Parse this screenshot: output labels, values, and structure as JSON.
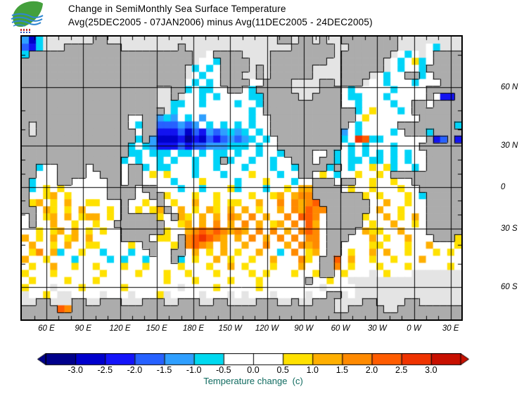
{
  "header": {
    "title_line1": "Change in SemiMonthly Sea Surface Temperature",
    "title_line2": "Avg(25DEC2005 - 07JAN2006) minus Avg(11DEC2005 - 24DEC2005)"
  },
  "colors": {
    "background": "#FFFFFF",
    "frame": "#000000",
    "land": "#ACACAC",
    "no_data": "#E4E4E4",
    "caption_text": "#106B60",
    "logo_leaf_green": "#44A03C",
    "logo_wave_blue": "#2E86D1"
  },
  "chart_data": {
    "type": "heatmap",
    "title": "Change in SemiMonthly Sea Surface Temperature",
    "subtitle": "Avg(25DEC2005 - 07JAN2006) minus Avg(11DEC2005 - 24DEC2005)",
    "projection": "mercator",
    "lon_domain_deg_east": [
      39,
      399
    ],
    "lat_domain": [
      -70,
      74
    ],
    "grid_on": true,
    "lon_gridlines": [
      60,
      90,
      120,
      150,
      180,
      210,
      240,
      270,
      300,
      330,
      360,
      390
    ],
    "lat_gridlines": [
      60,
      30,
      0,
      -30,
      -60
    ],
    "tick_interval_deg": 10,
    "x_ticks": [
      {
        "label": "60 E",
        "lon": 60
      },
      {
        "label": "90 E",
        "lon": 90
      },
      {
        "label": "120 E",
        "lon": 120
      },
      {
        "label": "150 E",
        "lon": 150
      },
      {
        "label": "180 E",
        "lon": 180
      },
      {
        "label": "150 W",
        "lon": 210
      },
      {
        "label": "120 W",
        "lon": 240
      },
      {
        "label": "90 W",
        "lon": 270
      },
      {
        "label": "60 W",
        "lon": 300
      },
      {
        "label": "30 W",
        "lon": 330
      },
      {
        "label": "0 W",
        "lon": 360
      },
      {
        "label": "30 E",
        "lon": 390
      }
    ],
    "y_ticks": [
      {
        "label": "60 N",
        "lat": 60
      },
      {
        "label": "30 N",
        "lat": 30
      },
      {
        "label": "0",
        "lat": 0
      },
      {
        "label": "30 S",
        "lat": -30
      },
      {
        "label": "60 S",
        "lat": -60
      }
    ],
    "colorbar": {
      "caption": "Temperature change  (c)",
      "tick_labels": [
        "-3.0",
        "-2.5",
        "-2.0",
        "-1.5",
        "-1.0",
        "-0.5",
        "0.0",
        "0.5",
        "1.0",
        "1.5",
        "2.0",
        "2.5",
        "3.0"
      ],
      "box_colors": [
        "#00008B",
        "#0000CD",
        "#1414FA",
        "#2761FF",
        "#2F9FFF",
        "#00D9F0",
        "#FFFFFF",
        "#FFFFFF",
        "#FFE100",
        "#FFAF00",
        "#FF8A00",
        "#FF5C00",
        "#EF3300",
        "#C81000"
      ],
      "left_arrow_color": "#00008B",
      "right_arrow_color": "#C81000",
      "units": "c"
    },
    "cell_legend": {
      "L": {
        "color": "#ACACAC",
        "meaning": "land"
      },
      "A": {
        "color": "#E4E4E4",
        "meaning": "no data / ice"
      },
      ".": {
        "color": "#FFFFFF",
        "value_range": [
          -0.5,
          0.5
        ]
      },
      "1": {
        "color": "#00D4F8",
        "value_range": [
          -1.0,
          -0.5
        ]
      },
      "2": {
        "color": "#2F9FFF",
        "value_range": [
          -1.5,
          -1.0
        ]
      },
      "3": {
        "color": "#2761FF",
        "value_range": [
          -2.0,
          -1.5
        ]
      },
      "4": {
        "color": "#1212F0",
        "value_range": [
          -2.5,
          -2.0
        ]
      },
      "5": {
        "color": "#0000C8",
        "value_range": [
          -3.0,
          -2.5
        ]
      },
      "6": {
        "color": "#000090",
        "value_range": [
          -3.5,
          -3.0
        ]
      },
      "a": {
        "color": "#FFE100",
        "value_range": [
          0.5,
          1.0
        ]
      },
      "b": {
        "color": "#FFAF00",
        "value_range": [
          1.0,
          1.5
        ]
      },
      "c": {
        "color": "#FF8A00",
        "value_range": [
          1.5,
          2.0
        ]
      },
      "d": {
        "color": "#FF5C00",
        "value_range": [
          2.0,
          2.5
        ]
      },
      "e": {
        "color": "#EF3300",
        "value_range": [
          2.5,
          3.0
        ]
      },
      "f": {
        "color": "#C81000",
        "value_range": [
          3.0,
          3.5
        ]
      }
    },
    "grid_cols": 62,
    "grid_rows": [
      "251AAAAAAALLAAAAAAAAAAAAAAAAAAAAAAAALLALLALAALLLLLLLLAAAAAAAAA",
      "341AAALLLLLLLLAAAAAAAALAAAAAAAAAAAAAAALLLLLLAALLLLLLLAAAA.1AAAA",
      "1LLLLLLLLLLLLLLLLLLLLLLLAA.LLLLAAAALLLLLLLLLALLLLLLLA.1.A.LLLL",
      "LLLLLLLLLLLLLLLLLLLLLLLLA..1LLLLAAALLLLLLLLAALLLLLLA.1.a1.LLLL",
      "LLLLLLLLLLLLLLLLLLLLLLLA1.1.LLLLALALLLLLLAAAALLLLLLA.1..1LLLLL",
      "LLLLLLLLLLLLLLLLLLLLLLLA.1..LLLAALALLLLLLAAAALLLLA.1..LL1.LLLL",
      "LLLLLLLLLLLLLLLLLLLLLLL.1.1.LLLL..LLLLAAAALLALLLA..1...1...LLL",
      "LLLLLLLLLLLLLLLLLLLAALL1.11..LL.1LLLLLAAAALLL.1.....1....LLLLL",
      "LLLLLLLLLLLLLLLLLLLAALA..1.1....11LLLLLAALLLL.11...1.....L.44L",
      "LLLLLLLLLLLLLLLLLLLAA11..1....1..1LLLLLLLLLLL..1....1..LL.LLLL",
      "LLLLLLLLLLLLLLLLLLLLA1..........1.LLLLLLLLLLLLL1.a...1.LLLLLLL",
      "LLLLLLLLLLLLLLL..LL212.1.2......1..LLLLLLLLLLLL.a.......LLLLLL",
      "LALLLLLLLLLLLLL.1LL333232.1.1.1.1..LLLLLLLLLLL.1.....LLLLLLLL1",
      "LALLLLLLLLLLLLLL.LL4443534232121.1.LLLLLLLLLL2.1....1.LLL1LLLL",
      "LLLLLLLLLLLLLLLL1L255546453432321.1.LLLLLLLLL1.ed11......L43L4",
      "LLLLLLLLLLLLLLL1.124443433222111.1..LLLLLLLLL.1.1...1...LLLLLL",
      "LLLLLLLLLLLLLLL11.111.11.1.11.1..1..1LLLL..L1.1.1.1.1.1..LLLLL",
      "LLLLLLLLLLLLLL1.1..1.1..1..1L1..1..1..LLL.LL1.11.11.1.1..LLLLL",
      "LL1..LLLL.LLLL.LL1.11...1..1...1...1..1LLLL1L.1..a.a1..1.LLLLL",
      "LL...LLLL..LLL.LL.a.a...1...1...a...1..LL.a.1..a..a.LLLLLLLLLL",
      "L1...LL.....LL.LL....1...a....1...a...1..LLL.LL..a..a..LLLLLLL",
      "L1.a.a......LLLL.LL...1..1...a1...1..a.bbLLLL.a..a...a..LLLLLL",
      "L..ab.a.....LLLL..LLa...a..a....a..ab.bccLLLLLLLa.a...a.1LLLLL",
      "Lab.a.b..aa...L..a.L.a..b..a.aa..b..c.cbcdLLLLLLL..b..a..LLLLL",
      "LL.ba.a.b...a.L.a.abL.b.a.ba.b.b.a..b.cbdccLLLLLL.b..a...LLLLL",
      ".L.ab.b.abb.a.LLLLLa.Lba.b.b.cb.c.b..c.ddc.LLLLLa..b.a.b.LLLLL",
      ".L..b..a..a..LLLLLLL..ab.b.c.b.c.b.ab.c.db.LLLLL.a..b..a.LLLLL",
      "..a.ab.b.a.a..LLLLLLa..bcdcdcbcb.c.c.b.cdc.LLLL.baa..b...LLLLL",
      "b.a.b.ab.b....LLLL.aa.Lcdedcb.b.c.b.c.c.cc.LLL...b.a..b...LLLa",
      ".b..a.b..aa....a.LL..aLcdcb.b..b..c..b.cbc.LL....aa...a..b...a",
      ".ac.b1..a..1...1..L..LL.b.a.b.a..b..1.c.ab.LL.a..b.b..a...a.a.",
      "b..a...1....1.1..1...L1.a..b.a..a..b...ca.LLd.b..a..a...b.....",
      ".a..b..a..a...a..a....a...a..b.a...a...b..LLc.a...a...a.....a.",
      "a...a......a....a...a..a...a....a.a...a..aLL.a...A.a...AAAAAAA",
      ".a....a...a.........a...a....a...a......L..a..AAAAAAAAAAAAAAAA",
      "a...A...a.....a.......A....a.....a........A....AAAAAAAAAAAAAAA",
      "A..a.AA....A...A...aA....A...A.A...A....A..LLA.AAAAAAAAAAAAAAA",
      "AALLAAALLAALLLAAALLLAALLLAALLAAAALLLAALAALLLAAAALLAAAALLAAAAAA",
      "LLLLLdcLLLLLLLLLLLLLLLLLLLLLLLLLLLLLLLLLLLLLAALLLLLAALLLLLLLLL",
      "LLLLLLLLLLLLLLLLLLLLLLLLLLLLLLLLLLLLLLLLLLLLLLLLLLLLLLLLLLLLLL"
    ]
  }
}
